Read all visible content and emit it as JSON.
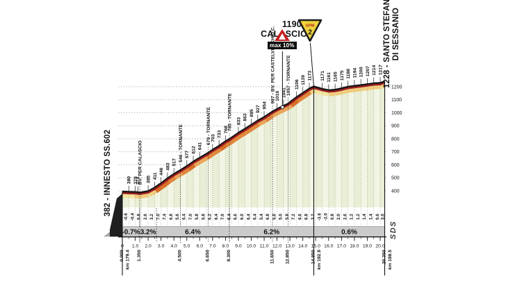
{
  "chart_data": {
    "type": "area",
    "title": "1190 - CALASCIO",
    "start_label": "382 - INNESTO SS.602",
    "finish_label_line1": "1228 - SANTO STEFANO",
    "finish_label_line2": "DI SESSANIO",
    "logo": "SDS",
    "x_unit": "km",
    "xlim": [
      0,
      20.35
    ],
    "ylim": [
      400,
      1200
    ],
    "y_ticks": [
      400,
      500,
      600,
      700,
      800,
      900,
      1000,
      1100,
      1200
    ],
    "x_tick_labels": [
      "0",
      "1.0",
      "2.0",
      "3.0",
      "4.0",
      "5.0",
      "6.0",
      "7.0",
      "8.0",
      "9.0",
      "10.0",
      "11.0",
      "12.0",
      "13.0",
      "14.0",
      "15.0",
      "16.0",
      "17.0",
      "18.0",
      "19.0",
      "20.0"
    ],
    "profile_points": [
      [
        0,
        382
      ],
      [
        0.5,
        380
      ],
      [
        1,
        378
      ],
      [
        1.35,
        374
      ],
      [
        2,
        385
      ],
      [
        2.5,
        411
      ],
      [
        3,
        446
      ],
      [
        3.5,
        483
      ],
      [
        4,
        517
      ],
      [
        4.5,
        546
      ],
      [
        5,
        577
      ],
      [
        5.5,
        612
      ],
      [
        6,
        641
      ],
      [
        6.65,
        679
      ],
      [
        7,
        703
      ],
      [
        7.5,
        733
      ],
      [
        8,
        768
      ],
      [
        8.3,
        785
      ],
      [
        9,
        833
      ],
      [
        9.5,
        863
      ],
      [
        10,
        895
      ],
      [
        10.5,
        927
      ],
      [
        11,
        954
      ],
      [
        11.65,
        997
      ],
      [
        12,
        1016
      ],
      [
        12.5,
        1041
      ],
      [
        12.85,
        1057
      ],
      [
        13.5,
        1106
      ],
      [
        14,
        1139
      ],
      [
        14.5,
        1173
      ],
      [
        14.85,
        1190
      ],
      [
        15,
        1185
      ],
      [
        15.5,
        1171
      ],
      [
        16,
        1161
      ],
      [
        16.5,
        1165
      ],
      [
        17,
        1175
      ],
      [
        17.5,
        1188
      ],
      [
        18,
        1194
      ],
      [
        18.5,
        1200
      ],
      [
        19,
        1207
      ],
      [
        19.5,
        1214
      ],
      [
        20,
        1217
      ],
      [
        20.35,
        1228
      ]
    ],
    "elevation_labels": [
      {
        "km": 0.5,
        "text": "380"
      },
      {
        "km": 1,
        "text": "378"
      },
      {
        "km": 1.2,
        "text": "374"
      },
      {
        "km": 2,
        "text": "385"
      },
      {
        "km": 2.5,
        "text": "411"
      },
      {
        "km": 3,
        "text": "446"
      },
      {
        "km": 3.5,
        "text": "483"
      },
      {
        "km": 4,
        "text": "517"
      },
      {
        "km": 5,
        "text": "577"
      },
      {
        "km": 5.5,
        "text": "612"
      },
      {
        "km": 6,
        "text": "641"
      },
      {
        "km": 7,
        "text": "703"
      },
      {
        "km": 7.5,
        "text": "733"
      },
      {
        "km": 8,
        "text": "768"
      },
      {
        "km": 9,
        "text": "833"
      },
      {
        "km": 9.5,
        "text": "863"
      },
      {
        "km": 10,
        "text": "895"
      },
      {
        "km": 10.5,
        "text": "927"
      },
      {
        "km": 11,
        "text": "954"
      },
      {
        "km": 12,
        "text": "1016"
      },
      {
        "km": 12.5,
        "text": "1041"
      },
      {
        "km": 13.5,
        "text": "1106"
      },
      {
        "km": 14,
        "text": "1139"
      },
      {
        "km": 14.5,
        "text": "1173"
      },
      {
        "km": 15.5,
        "text": "1171"
      },
      {
        "km": 16,
        "text": "1161"
      },
      {
        "km": 16.5,
        "text": "1165"
      },
      {
        "km": 17,
        "text": "1175"
      },
      {
        "km": 17.5,
        "text": "1188"
      },
      {
        "km": 18,
        "text": "1194"
      },
      {
        "km": 18.5,
        "text": "1200"
      },
      {
        "km": 19,
        "text": "1207"
      },
      {
        "km": 19.5,
        "text": "1214"
      },
      {
        "km": 20,
        "text": "1217"
      }
    ],
    "landmarks": [
      {
        "km": 1.35,
        "text": "BV. PER CALASCIO"
      },
      {
        "km": 4.5,
        "text": "546 - TORNANTE"
      },
      {
        "km": 6.65,
        "text": "679 - TORNANTE"
      },
      {
        "km": 8.3,
        "text": "785 - TORNANTE"
      },
      {
        "km": 11.65,
        "text": "997 - BV. PER CASTELVECCHIO C."
      },
      {
        "km": 12.85,
        "text": "1057 - TORNANTE"
      }
    ],
    "half_km_gradients": [
      "-0.6",
      "-0.4",
      "0.8",
      "2.6",
      "3.2",
      "7.0",
      "7.4",
      "6.8",
      "5.6",
      "6.4",
      "7.0",
      "5.8",
      "5.8",
      "6.2",
      "6.4",
      "7.0",
      "6.4",
      "6.6",
      "6.0",
      "6.4",
      "6.4",
      "5.4",
      "6.8",
      "5.6",
      "5.0",
      "5.8",
      "7.2",
      "6.6",
      "6.8",
      "3.2",
      "-3.6",
      "-2.0",
      "0.8",
      "2.0",
      "2.6",
      "1.2",
      "1.2",
      "1.4",
      "1.4",
      "0.6",
      "3.0"
    ],
    "gradient_sections": [
      {
        "from_km": 0,
        "to_km": 1.35,
        "label": "-0.7%"
      },
      {
        "from_km": 1.35,
        "to_km": 2.65,
        "label": "3.2%"
      },
      {
        "from_km": 2.65,
        "to_km": 8.3,
        "label": "6.4%"
      },
      {
        "from_km": 8.3,
        "to_km": 14.85,
        "label": "6.2%"
      },
      {
        "from_km": 14.85,
        "to_km": 20.35,
        "label": "0.6%"
      }
    ],
    "km_markers": [
      {
        "km": 0,
        "labels": [
          "0.000",
          "km 179.4"
        ],
        "solid": true
      },
      {
        "km": 1.35,
        "labels": [
          "1.350"
        ],
        "solid": false
      },
      {
        "km": 4.5,
        "labels": [
          "4.500"
        ],
        "solid": false
      },
      {
        "km": 6.65,
        "labels": [
          "6.650"
        ],
        "solid": false
      },
      {
        "km": 8.3,
        "labels": [
          "8.300"
        ],
        "solid": false
      },
      {
        "km": 11.65,
        "labels": [
          "11.650"
        ],
        "solid": false
      },
      {
        "km": 12.85,
        "labels": [
          "12.850"
        ],
        "solid": false
      },
      {
        "km": 14.85,
        "labels": [
          "14.850",
          "km 192.9"
        ],
        "solid": true
      },
      {
        "km": 20.35,
        "labels": [
          "20.350",
          "km 198.5"
        ],
        "solid": true
      }
    ],
    "signs": {
      "max_gradient": {
        "km": 12.42,
        "label": "max 10%"
      },
      "gpm": {
        "km": 14.85,
        "label_small": "GPM",
        "category": "2"
      }
    },
    "colors": {
      "profile_edge": "#161616",
      "profile_line": "#a01d20",
      "fill_a": "#e9efd6",
      "fill_b": "#f2f5e3",
      "band_flat": "#f2e49c",
      "band_mild": "#f0cd7d",
      "band_mid": "#eca658",
      "band_steep": "#e2873b",
      "band_steepest": "#d96f25",
      "box_bg": "#cbcbcb",
      "sign_yellow": "#efd23d",
      "sign_red": "#c51e1e",
      "text": "#111111"
    }
  }
}
